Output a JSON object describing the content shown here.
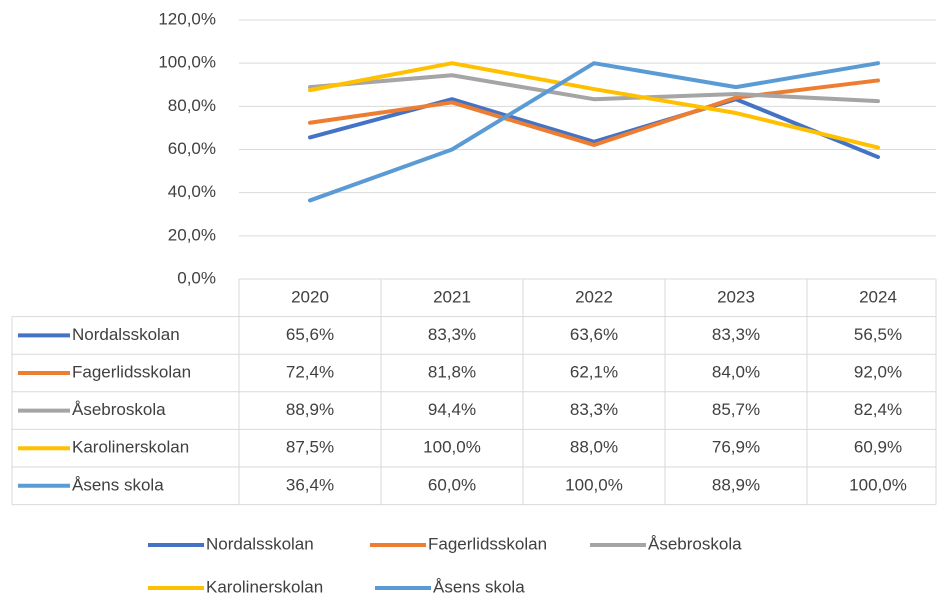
{
  "chart_data": {
    "type": "line",
    "categories": [
      "2020",
      "2021",
      "2022",
      "2023",
      "2024"
    ],
    "series": [
      {
        "name": "Nordalsskolan",
        "color": "#4472c4",
        "values": [
          65.6,
          83.3,
          63.6,
          83.3,
          56.5
        ],
        "value_labels": [
          "65,6%",
          "83,3%",
          "63,6%",
          "83,3%",
          "56,5%"
        ]
      },
      {
        "name": "Fagerlidsskolan",
        "color": "#ed7d31",
        "values": [
          72.4,
          81.8,
          62.1,
          84.0,
          92.0
        ],
        "value_labels": [
          "72,4%",
          "81,8%",
          "62,1%",
          "84,0%",
          "92,0%"
        ]
      },
      {
        "name": "Åsebroskola",
        "color": "#a5a5a5",
        "values": [
          88.9,
          94.4,
          83.3,
          85.7,
          82.4
        ],
        "value_labels": [
          "88,9%",
          "94,4%",
          "83,3%",
          "85,7%",
          "82,4%"
        ]
      },
      {
        "name": "Karolinerskolan",
        "color": "#ffc000",
        "values": [
          87.5,
          100.0,
          88.0,
          76.9,
          60.9
        ],
        "value_labels": [
          "87,5%",
          "100,0%",
          "88,0%",
          "76,9%",
          "60,9%"
        ]
      },
      {
        "name": "Åsens skola",
        "color": "#5b9bd5",
        "values": [
          36.4,
          60.0,
          100.0,
          88.9,
          100.0
        ],
        "value_labels": [
          "36,4%",
          "60,0%",
          "100,0%",
          "88,9%",
          "100,0%"
        ]
      }
    ],
    "ylim": [
      0,
      120
    ],
    "yticks": [
      {
        "value": 0,
        "label": "0,0%"
      },
      {
        "value": 20,
        "label": "20,0%"
      },
      {
        "value": 40,
        "label": "40,0%"
      },
      {
        "value": 60,
        "label": "60,0%"
      },
      {
        "value": 80,
        "label": "80,0%"
      },
      {
        "value": 100,
        "label": "100,0%"
      },
      {
        "value": 120,
        "label": "120,0%"
      }
    ],
    "grid": true,
    "legend": "bottom"
  }
}
